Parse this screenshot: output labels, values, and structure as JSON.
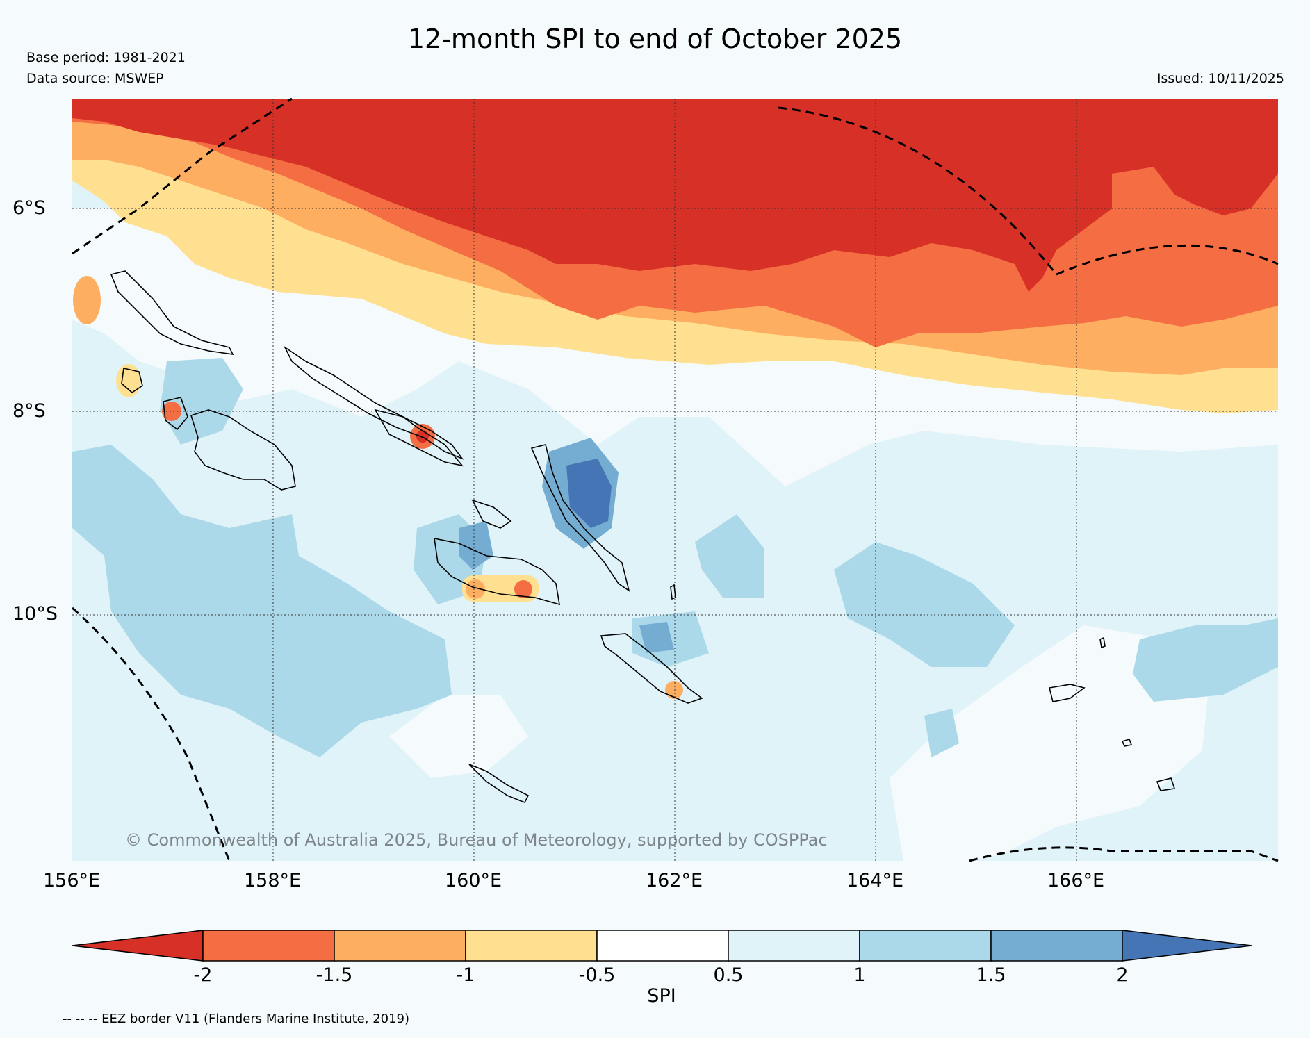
{
  "title": "12-month SPI to end of October 2025",
  "base_period": "Base period: 1981-2021",
  "data_source": "Data source: MSWEP",
  "issued": "Issued: 10/11/2025",
  "copyright": "© Commonwealth of Australia 2025, Bureau of Meteorology, supported by COSPPac",
  "latitude_labels": [
    "6°S",
    "8°S",
    "10°S"
  ],
  "longitude_labels": [
    "156°E",
    "158°E",
    "160°E",
    "162°E",
    "164°E",
    "166°E"
  ],
  "colorbar": {
    "label": "SPI",
    "ticks": [
      "-2",
      "-1.5",
      "-1",
      "-0.5",
      "0.5",
      "1",
      "1.5",
      "2"
    ],
    "colors": [
      "#d73027",
      "#f46d43",
      "#fdae61",
      "#fee090",
      "#ffffff",
      "#e0f3f8",
      "#abd9e9",
      "#74add1",
      "#4575b4"
    ]
  },
  "legend_note": "-- -- -- EEZ border V11 (Flanders Marine Institute, 2019)"
}
